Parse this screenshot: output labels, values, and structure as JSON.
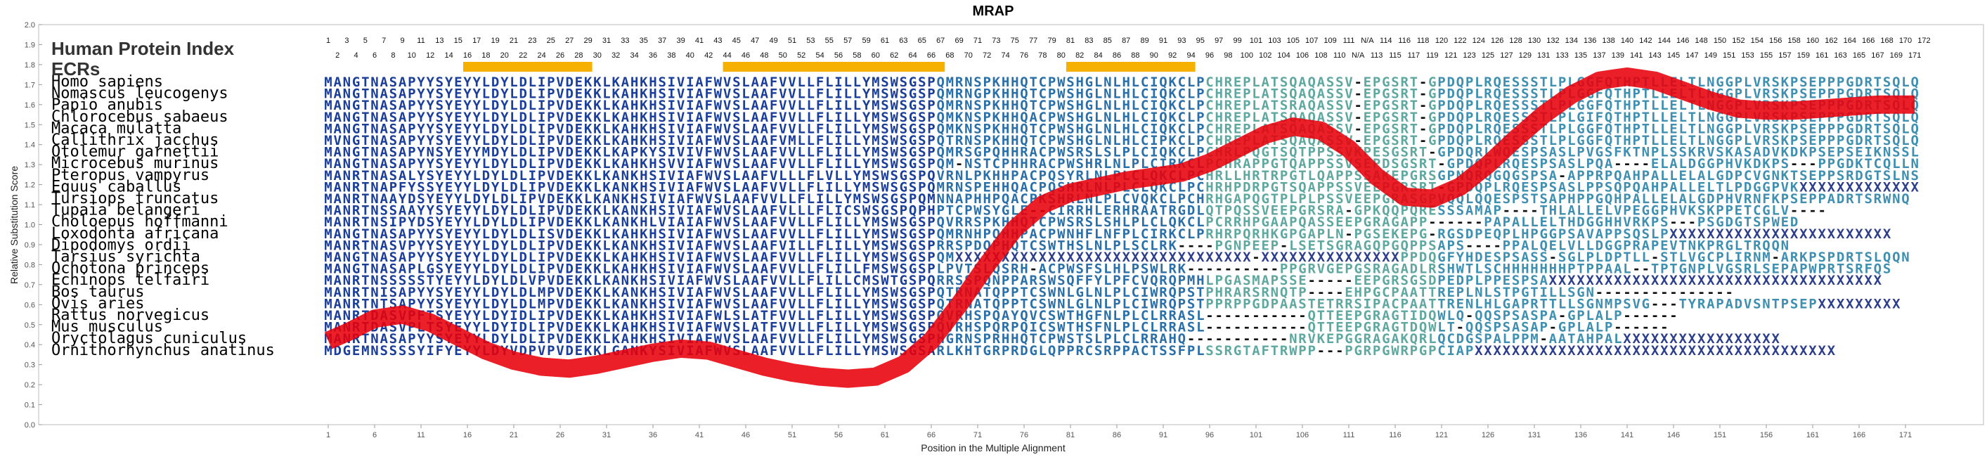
{
  "chart_data": {
    "type": "line",
    "title": "MRAP",
    "xlabel": "Position in the Multiple Alignment",
    "ylabel": "Relative Substitution Score",
    "xlim": [
      1,
      172
    ],
    "ylim": [
      0,
      2.0
    ],
    "yticks": [
      "0.0",
      "0.1",
      "0.2",
      "0.3",
      "0.4",
      "0.5",
      "0.6",
      "0.7",
      "0.8",
      "0.9",
      "1.0",
      "1.1",
      "1.2",
      "1.3",
      "1.4",
      "1.5",
      "1.6",
      "1.7",
      "1.8",
      "1.9",
      "2.0"
    ],
    "xticks": [
      "1",
      "6",
      "11",
      "16",
      "21",
      "26",
      "31",
      "36",
      "41",
      "46",
      "51",
      "56",
      "61",
      "66",
      "71",
      "76",
      "81",
      "86",
      "91",
      "96",
      "101",
      "106",
      "111",
      "116",
      "121",
      "126",
      "131",
      "136",
      "141",
      "146",
      "151",
      "156",
      "161",
      "166",
      "171"
    ],
    "header_label": "Human Protein Index",
    "ecr_label": "ECRs",
    "protein_index_odd": [
      "1",
      "3",
      "5",
      "7",
      "9",
      "11",
      "13",
      "15",
      "17",
      "19",
      "21",
      "23",
      "25",
      "27",
      "29",
      "31",
      "33",
      "35",
      "37",
      "39",
      "41",
      "43",
      "45",
      "47",
      "49",
      "51",
      "53",
      "55",
      "57",
      "59",
      "61",
      "63",
      "65",
      "67",
      "69",
      "71",
      "73",
      "75",
      "77",
      "79",
      "81",
      "83",
      "85",
      "87",
      "89",
      "91",
      "93",
      "95",
      "97",
      "99",
      "101",
      "103",
      "105",
      "107",
      "109",
      "111",
      "N/A",
      "114",
      "116",
      "118",
      "120",
      "122",
      "124",
      "126",
      "128",
      "130",
      "132",
      "134",
      "136",
      "138",
      "140",
      "142",
      "144",
      "146",
      "148",
      "150",
      "152",
      "154",
      "156",
      "158",
      "160",
      "162",
      "164",
      "166",
      "168",
      "170",
      "172"
    ],
    "protein_index_even": [
      "2",
      "4",
      "6",
      "8",
      "10",
      "12",
      "14",
      "16",
      "18",
      "20",
      "22",
      "24",
      "26",
      "28",
      "30",
      "32",
      "34",
      "36",
      "38",
      "40",
      "42",
      "44",
      "46",
      "48",
      "50",
      "52",
      "54",
      "56",
      "58",
      "60",
      "62",
      "64",
      "66",
      "68",
      "70",
      "72",
      "74",
      "76",
      "78",
      "80",
      "82",
      "84",
      "86",
      "88",
      "90",
      "92",
      "94",
      "96",
      "98",
      "100",
      "102",
      "104",
      "106",
      "108",
      "110",
      "N/A",
      "113",
      "115",
      "117",
      "119",
      "121",
      "123",
      "125",
      "127",
      "129",
      "131",
      "133",
      "135",
      "137",
      "139",
      "141",
      "143",
      "145",
      "147",
      "149",
      "151",
      "153",
      "155",
      "157",
      "159",
      "161",
      "163",
      "165",
      "167",
      "169",
      "171"
    ],
    "ecr_regions": [
      [
        16,
        29
      ],
      [
        44,
        67
      ],
      [
        81,
        94
      ]
    ],
    "species": [
      {
        "name": "Homo sapiens",
        "seq": "MANGTNASAPYYSYEYYLDYLDLIPVDEKKLKAHKHSIVIAFWVSLAAFVVLLFLILLYMSWSGSPQMRNSPKHHQTCPWSHGLNLHLCIQKCLPCHREPLATSQAQASSV-EPGSRT-GPDQPLRQESSSTLPLGGFQTHPTLLELTLNGGPLVRSKPSEPPPGDRTSQLQS"
      },
      {
        "name": "Nomascus leucogenys",
        "seq": "MANGTNASAPYYSYEYYLDYLDLIPVDEKKLKAHKHSIVIAFWVSLAAFVVLLFLILLYMSWSGSPQMRNGPKHHQTCPWSHGLNLHLCIQKCLPCHREPLATSQAQASSV-EPGSRT-GPDQPLRQESSSTLPLGGFQTHPTLLELTLNGGPLVRSKPSEPPPGDRTSQLQS"
      },
      {
        "name": "Papio anubis",
        "seq": "MANGTNASAPYYSYEYYLDYLDLIPVDEKKLKAHKHSIVIAFWVSLAAFVVLLFLILLYMSWSGSPQMRNSPKHHQTCPWSHGLNLHLCIQKCLPCHREPLATSRAQASSV-EPGSRT-GPDQPLRQESSSTLPLGGFQTHPTLLELTLNGGPLVRSKPSEPPPGDRTSQLQS"
      },
      {
        "name": "Chlorocebus sabaeus",
        "seq": "MANGTNASAPYYSYEYYLDYLDLIPVDEKKLKAHKHSIVIAFWVSLAAFVVLLFLILLYMSWSGSPQMKNSPKHHQACPWSHGLNLHLCIQKCLPCHREPLATSQAQASSV-EPGSRT-GPDQPLRQESSSTLPLGIFQTHPTLLELTLNGGPLVRSKPSEPPPGDRTSQLQS"
      },
      {
        "name": "Macaca mulatta",
        "seq": "MANGTNASAPYYSYEYYLDYLDLIPVDEKKLKAHKHSIVIAFWVSLAAFVVLLFLILLYMSWSGSPQMKNSPKHHQTCPWSHGLNLHLCIQKCLPCHREPLATSQAQASSV-EPGSRT-GPDQPLRQESSSTLPLGGFQTHPTLLELTLNGGPLVRSKPSEPPPGDRTSQLQS"
      },
      {
        "name": "Callithrix jacchus",
        "seq": "MVNGTNASAPYYSYEYYLDYLDLIPVDEKKLKAHKHSIVIAFWVSLAAFVMLLFLILLYMSWSGSPQTRNSPKHHQTCPWSHGLNLHLCIPKCLPCHREPLATSQAQASSV-EPGSRT-GPDQPLRQESSSTLPLGGFQTHPTLLELTLNGGPLVRSKPSEPPPGDRTSQLQS"
      },
      {
        "name": "Otolemur garnettii",
        "seq": "MANGTNASAPYNSYEYYMDYLDLIPVDEKKLKAPKYSIVIVFWVSLAAFVVLLFLILLYMSWSGSPQMRSGPQHHRACPWSRSLSLPLCIQKCLPCHRLPQGTSQTPPSSVKPESGSRT-GPDQRLWQESPSASLPVGSFKTNPLSSKRVSKASADVKDKPSEPSEIKNSSLQN"
      },
      {
        "name": "Microcebus murinus",
        "seq": "MANGTNASAPYYSYEYYLDYLDLIPVDEKKLKAHKHSVVIAFWVSLAAFVVLLFLILLYMSWSGSPQM-NSTCPHHRACPWSHRLNLPLCIRKCLPCHRAPPGTQAPPSSVSEPDSGSRT-GPDQPLRQESPSASLPQA----ELALDGGPHVKDKPS---PPGDKTCQLLN"
      },
      {
        "name": "Pteropus vampyrus",
        "seq": "MANRTNASALYSYEYYLDYLDLIPVDEKKLKANKHSIVIAFWVSLAAFVLLLFLVLLYMSWSGSPQVRNLPKHHPACPQSYRLNLPLCLQKCLPCHRLLHRTRPGTLQAPPSSAKEPGRSGPNQRQGQGSPSA-APPRPQAHPALLELALGDPCVGNKTSEPPSRDGTSLNSR"
      },
      {
        "name": "Equus caballus",
        "seq": "MANRTNAPFYSSYEYYLDYLDLIPVDEKKLKANKHSIVIAFWVSLAAFVVLLFLILLYMSWSGSPQMRNSPEHHQACPQSHRLNLPLCLQKCLPCHRHPDRPGTSQAPPSSVEEPGRSRT-GPDQPLRQESPSASLPPSQPQAHPALLELTLPDGGPVKXXXXXXXXXXXXXXX"
      },
      {
        "name": "Tursiops truncatus",
        "seq": "MANRTNAAYDSYEYYLDYLDLIPVDEKKLKANKHSIVIAFWVSLAAFVVLLFLILLYMSWSGSPQMNNAPHHPQACPKSHRLNLPLCVQKCLPCHRHGAPQGTPLPLPSSVEEPGRASGPVQQLQQESPSTSAPHPPGQHPALLELALGDPHVRNFKPSEPPADRTSRWNQ"
      },
      {
        "name": "Tupaia belangeri",
        "seq": "MANRTNSSAAYYSYEYYLDYLDLIPVDEKKLKANKHSIVIAFWVSLAAFVLLLFLICSWSGSPQPHPTCPWSYGLE--CIRRHLERHRAATRGDLQTPQSSVEEPGRSRA-GPKQQPQRESSSAMAP----THLALLELVPEGGPHVKSKPPETCGLV----"
      },
      {
        "name": "Choloepus hoffmanni",
        "seq": "MANRTNSIPYDSYEYYLDYLDLIPVDEKKLKANKHLVIAIAFWVSLAAFVVLLFLILLYMSWSGSPQVRRSPKHHQTCPWSRSLSHLPLCLQKCLPCRRHPGAAPQASSEEPGRAGAPP------PAPALLELTHDGGHHVRKPS---PSGDGTSPWED"
      },
      {
        "name": "Loxodonta africana",
        "seq": "MANGTNASAPYYSYEYYLDYLDLISVDEKKLKAHKHSIVIAFWVSLAAFVVLLFLILLYMSWSGSPQMRNHPQHHPACPWNHFLNFPLCIRKCLPRHRPQRHKGPGAPLN-PGSEKEPG-RGSDPEQPLHPGGPSAVAPPSQSLPXXXXXXXXXXXXXXXXXXXXXXXX"
      },
      {
        "name": "Dipodomys ordii",
        "seq": "MANRTNASVPYYSYEYYLDYLDLIPVDEKKLKANKHSIVIAFWVSLAAFVILLFLILLYMSWSGSPRRSPDQPHQTCSWTHSLNLPLSCLRK----PGNPEEP-LSETSGRAGQPGQPPSAPS----PPALQELVLLDGGPRAPEVTNKPRGLTRQQN"
      },
      {
        "name": "Tarsius syrichta",
        "seq": "MANGTNASAPYYSYEYYLDYLDLIPVDEKKLKAHKHSIVIAFWVSLAAFVVLLFLILLYMSWSGSPQMXXXXXXXXXXXXXXXXXXXXXXXXXXXXXXXX-XXXXXXXXXXXXXXXPPDQGFYHDESPSASS-SGLPLDPTLL-STLVGCPLIRNM-ARKPSPDRTSLQQN"
      },
      {
        "name": "Ochotona princeps",
        "seq": "MANGTNASAPLGSYEYYLDYLDLIPVDEKKLKAHKHSIVIAFWVSLAAFVVLLFLILLFMSWSGSPLPVTSLQSRH-ACPWSFSLHLPSWLRK----------PPGRVGEPGSRAGADLRSHWTLSCHHHHHHHPTPPAAL--TPTGNPLVGSRLSEPAPWPRTSRFQS"
      },
      {
        "name": "Echinops telfairi",
        "seq": "MANRTNSSSSSTYEYYLDYLDLVPVDEKKLKANKHSIVIAFWVSLAAFVVLLFLILLCMSWTGSPQRRSSPQNPPARSWSQFFYLPFCVQRQPMHLPGASMAPSSE-----EEPGRSGSDPEDPLPPESPSAXXXXXXXXXXXXXXXXXXXXXXXXXXXXXXXXXXXX"
      },
      {
        "name": "Bos taurus",
        "seq": "MANRTNISAPYYSYEYYLDYLDLMPVDEKKLKANKHSIVIAFWVSLAAFVVLLFLILLYMSWSGSPQTRNATQPPTCSWNLGLNLPLCIWRQPSTPHRARSRNQTP----EHPGCPAATTREPLNLSTPGTILLSGN---------------"
      },
      {
        "name": "Ovis aries",
        "seq": "MANRTNTSAPYYSYEYYLDYLDLMPVDEKKLKANKHSIVIAFWVSLAAFVVLLFLILLYMSWSGSPQTRNATQPPTCSWNLGLNLPLCIWRQPSTPPRPPGDPAASTETRRSIPACPAATTRENLHLGAPRTTLLSGNMPSVG---TYRAPADVSNTPSEPXXXXXXXXX"
      },
      {
        "name": "Rattus norvegicus",
        "seq": "MANRTDASVPFTSYEYYLDYIDLIPVDEKKLKAHKHSIVIAFWLSLATFVVLLFLILLYMSWSGSPQVRHSPQAYQVCSWTHGFNLPLCLRRASL-----------QTTEEPGRAGTIDQWLQ-QQSPSASPA-GPLALP------"
      },
      {
        "name": "Mus musculus",
        "seq": "MANRTDASVPLTSYEYYLDYIDLIPVDEKKLKAHKHSIVIAFWVSLATFVVLLFLILLYMSWSGSPQVRHSPQRPQICSWTHSFNLPLCLRRASL-----------QTTEEPGRAGTDQWLT-QQSPSASAP-GPLALP------"
      },
      {
        "name": "Oryctolagus cuniculus",
        "seq": "MANRTNASAPYYSYEYYLDYLDLIPVDEKKLKAHKHSIVIAFWVSLAAFVVLLFLILLYMSWSGSPHGRNSPRHHQTCPWSTSLPLCLRRAHQ-----------NRVKEPGGRAGAKQRLQCDGSPALPPM-AATAHPALXXXXXXXXXXXXXXXXX"
      },
      {
        "name": "Ornithorhynchus anatinus",
        "seq": "MDGEMNSSSSYIFYEYYLDYVDPVPVDEKKLGANKYSIVIAFWVSLAAFVVLLFLILLYMSWSGSARLKHTGRPRDGLQPPRCSRPPACTSSFPLSSRGTAFTRWPP---PGRPGWRPGPCIAPXXXXXXXXXXXXXXXXXXXXXXXXXXXXXXXXXXXXXXX"
      }
    ],
    "series": [
      {
        "color": "#e8000a",
        "x": [
          1,
          3,
          6,
          9,
          12,
          15,
          18,
          21,
          24,
          27,
          30,
          33,
          36,
          39,
          42,
          45,
          48,
          51,
          54,
          57,
          60,
          63,
          66,
          69,
          72,
          75,
          78,
          81,
          84,
          87,
          90,
          93,
          96,
          99,
          102,
          105,
          108,
          111,
          114,
          117,
          120,
          123,
          126,
          129,
          132,
          135,
          138,
          141,
          144,
          147,
          150,
          153,
          156,
          159,
          162,
          165,
          168,
          171,
          172
        ],
        "y": [
          0.42,
          0.46,
          0.53,
          0.55,
          0.51,
          0.44,
          0.37,
          0.32,
          0.29,
          0.28,
          0.3,
          0.33,
          0.36,
          0.38,
          0.37,
          0.33,
          0.29,
          0.26,
          0.24,
          0.23,
          0.24,
          0.3,
          0.42,
          0.6,
          0.8,
          0.98,
          1.1,
          1.16,
          1.19,
          1.22,
          1.24,
          1.26,
          1.31,
          1.38,
          1.45,
          1.49,
          1.47,
          1.38,
          1.24,
          1.14,
          1.13,
          1.19,
          1.3,
          1.43,
          1.55,
          1.65,
          1.72,
          1.74,
          1.72,
          1.67,
          1.62,
          1.58,
          1.57,
          1.57,
          1.58,
          1.59,
          1.6,
          1.6,
          1.6
        ]
      }
    ]
  }
}
